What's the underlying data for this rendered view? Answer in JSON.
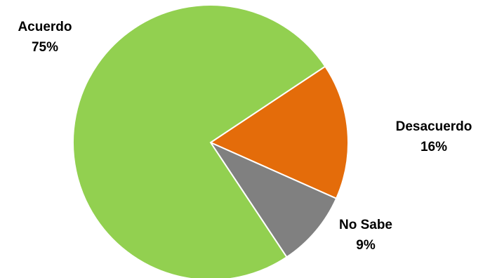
{
  "chart_data": {
    "type": "pie",
    "title": "",
    "slices": [
      {
        "label": "Acuerdo",
        "value": 75,
        "pct_label": "75%",
        "color": "#92d050"
      },
      {
        "label": "Desacuerdo",
        "value": 16,
        "pct_label": "16%",
        "color": "#e46c0a"
      },
      {
        "label": "No Sabe",
        "value": 9,
        "pct_label": "9%",
        "color": "#808080"
      }
    ],
    "legend": "none",
    "data_labels": "outside"
  }
}
